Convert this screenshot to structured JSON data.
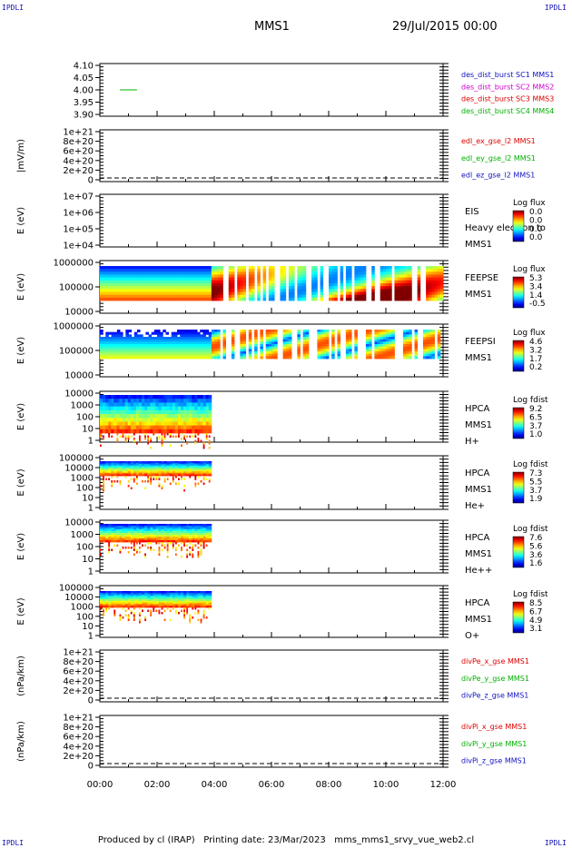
{
  "corner_label": "IPDLI",
  "header": {
    "mission": "MMS1",
    "datetime": "29/Jul/2015 00:00"
  },
  "footer": {
    "produced_by": "Produced by cl (IRAP)",
    "printing_date": "Printing date: 23/Mar/2023",
    "file": "mms_mms1_srvy_vue_web2.cl"
  },
  "colors": {
    "red": "#e00000",
    "green": "#00b000",
    "blue": "#1010c0",
    "magenta": "#d000d0",
    "black": "#000000"
  },
  "time_axis": {
    "tick_labels": [
      "00:00",
      "02:00",
      "04:00",
      "06:00",
      "08:00",
      "10:00",
      "12:00"
    ],
    "range_hours": [
      0,
      12
    ]
  },
  "chart_data": [
    {
      "type": "line",
      "ylabel": "",
      "yticks": [
        "4.10",
        "4.05",
        "4.00",
        "3.95",
        "3.90"
      ],
      "ylim": [
        3.9,
        4.1
      ],
      "legend": [
        {
          "label": "des_dist_burst SC1 MMS1",
          "color": "blue"
        },
        {
          "label": "des_dist_burst SC2 MMS2",
          "color": "magenta"
        },
        {
          "label": "des_dist_burst SC3 MMS3",
          "color": "red"
        },
        {
          "label": "des_dist_burst SC4 MMS4",
          "color": "green"
        }
      ],
      "segments": [
        {
          "series": "des_dist_burst SC4 MMS4",
          "x_hours": [
            0.7,
            1.3
          ],
          "y": 4.0
        }
      ]
    },
    {
      "type": "line",
      "ylabel": "|mV/m)",
      "yticks": [
        "1e+21",
        "8e+20",
        "6e+20",
        "4e+20",
        "2e+20",
        "0"
      ],
      "ylim": [
        0,
        1e+21
      ],
      "legend": [
        {
          "label": "edl_ex_gse_l2 MMS1",
          "color": "red"
        },
        {
          "label": "edl_ey_gse_l2 MMS1",
          "color": "green"
        },
        {
          "label": "edl_ez_gse_l2 MMS1",
          "color": "blue"
        }
      ],
      "zero_line": true
    },
    {
      "type": "heatmap",
      "ylabel": "E (eV)",
      "yticks": [
        "1e+07",
        "1e+06",
        "1e+05",
        "1e+04"
      ],
      "ylog": [
        4,
        7
      ],
      "labels": [
        "EIS",
        "Heavy electron to",
        "MMS1"
      ],
      "colorbar": {
        "title": "Log flux",
        "ticks": [
          "0.0",
          "0.0",
          "0.0",
          "0.0"
        ]
      }
    },
    {
      "type": "heatmap",
      "ylabel": "E (eV)",
      "yticks": [
        "1000000",
        "100000",
        "10000"
      ],
      "ylog": [
        4,
        6
      ],
      "labels": [
        "FEEPSE",
        "MMS1"
      ],
      "colorbar": {
        "title": "Log flux",
        "ticks": [
          "5.3",
          "3.4",
          "1.4",
          "-0.5"
        ]
      }
    },
    {
      "type": "heatmap",
      "ylabel": "E (eV)",
      "yticks": [
        "1000000",
        "100000",
        "10000"
      ],
      "ylog": [
        4,
        6
      ],
      "labels": [
        "FEEPSI",
        "MMS1"
      ],
      "colorbar": {
        "title": "Log flux",
        "ticks": [
          "4.6",
          "3.2",
          "1.7",
          "0.2"
        ]
      }
    },
    {
      "type": "heatmap",
      "ylabel": "E (eV)",
      "yticks": [
        "10000",
        "1000",
        "100",
        "10",
        "1"
      ],
      "ylog": [
        0,
        4.3
      ],
      "labels": [
        "HPCA",
        "MMS1",
        "H+"
      ],
      "colorbar": {
        "title": "Log fdist",
        "ticks": [
          "9.2",
          "6.5",
          "3.7",
          "1.0"
        ]
      }
    },
    {
      "type": "heatmap",
      "ylabel": "E (eV)",
      "yticks": [
        "100000",
        "10000",
        "1000",
        "100",
        "10",
        "1"
      ],
      "ylog": [
        0,
        5
      ],
      "labels": [
        "HPCA",
        "MMS1",
        "He+"
      ],
      "colorbar": {
        "title": "Log fdist",
        "ticks": [
          "7.3",
          "5.5",
          "3.7",
          "1.9"
        ]
      }
    },
    {
      "type": "heatmap",
      "ylabel": "E (eV)",
      "yticks": [
        "10000",
        "1000",
        "100",
        "10",
        "1"
      ],
      "ylog": [
        0,
        4.3
      ],
      "labels": [
        "HPCA",
        "MMS1",
        "He++"
      ],
      "colorbar": {
        "title": "Log fdist",
        "ticks": [
          "7.6",
          "5.6",
          "3.6",
          "1.6"
        ]
      }
    },
    {
      "type": "heatmap",
      "ylabel": "E (eV)",
      "yticks": [
        "100000",
        "10000",
        "1000",
        "100",
        "10",
        "1"
      ],
      "ylog": [
        0,
        5
      ],
      "labels": [
        "HPCA",
        "MMS1",
        "O+"
      ],
      "colorbar": {
        "title": "Log fdist",
        "ticks": [
          "8.5",
          "6.7",
          "4.9",
          "3.1"
        ]
      }
    },
    {
      "type": "line",
      "ylabel": "(nPa/km)",
      "yticks": [
        "1e+21",
        "8e+20",
        "6e+20",
        "4e+20",
        "2e+20",
        "0"
      ],
      "ylim": [
        0,
        1e+21
      ],
      "legend": [
        {
          "label": "divPe_x_gse MMS1",
          "color": "red"
        },
        {
          "label": "divPe_y_gse MMS1",
          "color": "green"
        },
        {
          "label": "divPe_z_gse MMS1",
          "color": "blue"
        }
      ],
      "zero_line": true
    },
    {
      "type": "line",
      "ylabel": "(nPa/km)",
      "yticks": [
        "1e+21",
        "8e+20",
        "6e+20",
        "4e+20",
        "2e+20",
        "0"
      ],
      "ylim": [
        0,
        1e+21
      ],
      "legend": [
        {
          "label": "divPi_x_gse MMS1",
          "color": "red"
        },
        {
          "label": "divPi_y_gse MMS1",
          "color": "green"
        },
        {
          "label": "divPi_z_gse MMS1",
          "color": "blue"
        }
      ],
      "zero_line": true
    }
  ]
}
